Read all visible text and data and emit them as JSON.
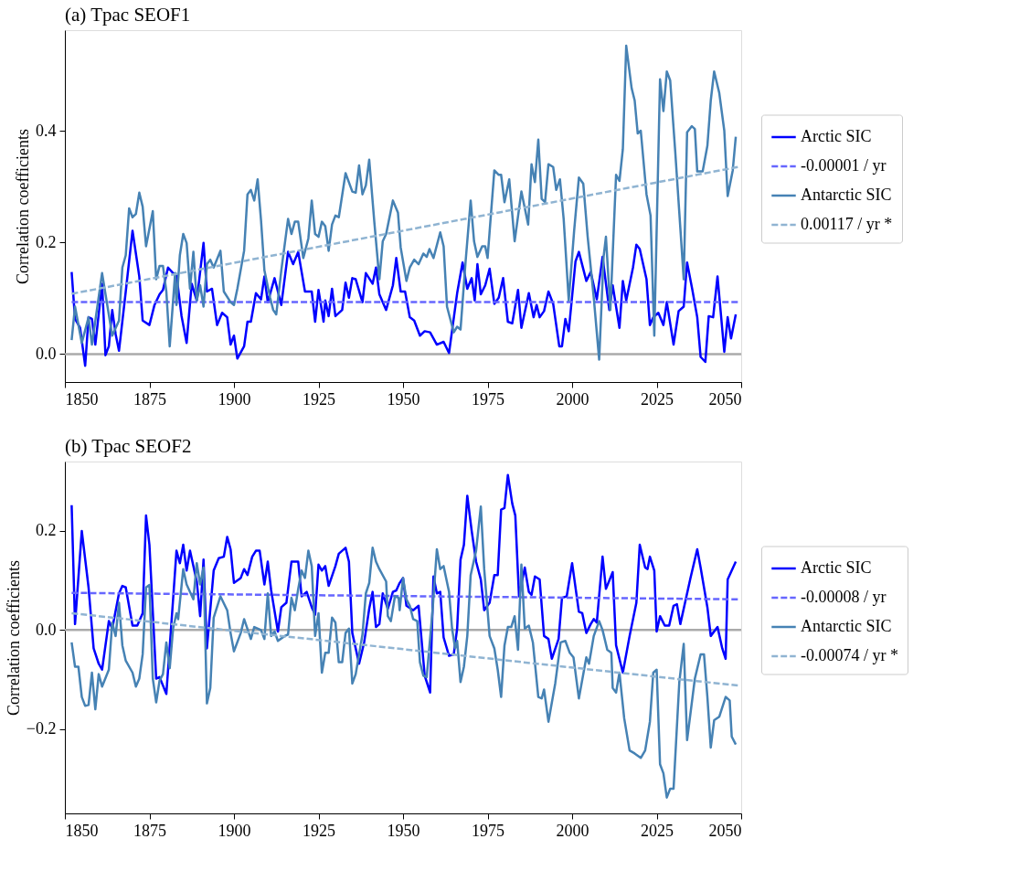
{
  "chart_data": [
    {
      "type": "line",
      "title": "(a) Tpac SEOF1",
      "ylabel": "Correlation coefficients",
      "legend": "right",
      "xlim": [
        1850,
        2050
      ],
      "xticks": [
        1850,
        1875,
        1900,
        1925,
        1950,
        1975,
        2000,
        2025,
        2050
      ],
      "ylim": [
        -0.05,
        0.58
      ],
      "yticks": [
        {
          "value": 0,
          "label": "0.0"
        },
        {
          "value": 0.2,
          "label": "0.2"
        },
        {
          "value": 0.4,
          "label": "0.4"
        }
      ],
      "ref_lines": [
        {
          "axis": "y",
          "value": 0,
          "color": "#aaaaaa"
        }
      ],
      "series": [
        {
          "name": "Arctic SIC",
          "type": "line",
          "color": "#0000ff",
          "line_style": "solid",
          "x": [
            1852,
            1853,
            1854.5,
            1856,
            1857,
            1858,
            1859,
            1861,
            1862,
            1863,
            1864,
            1865,
            1866,
            1868,
            1870,
            1872,
            1873,
            1875,
            1876.5,
            1878,
            1879,
            1880.5,
            1882,
            1883,
            1884.5,
            1886,
            1887.5,
            1889,
            1891,
            1892,
            1893.5,
            1895,
            1896.5,
            1898,
            1899,
            1900,
            1901,
            1903,
            1904,
            1905,
            1906.5,
            1908,
            1909,
            1910,
            1912,
            1914,
            1916,
            1917.5,
            1919,
            1921,
            1923,
            1924,
            1925,
            1926.5,
            1927,
            1928,
            1929,
            1930,
            1932,
            1933,
            1934,
            1935,
            1936,
            1938,
            1939,
            1941,
            1942,
            1943,
            1945,
            1947,
            1948,
            1949.3,
            1950.6,
            1952,
            1953.3,
            1955,
            1956.4,
            1958,
            1960,
            1962,
            1963.6,
            1966,
            1967.6,
            1969,
            1970.3,
            1971.2,
            1972,
            1973,
            1974.3,
            1975.6,
            1977,
            1978.3,
            1979.6,
            1981,
            1982.3,
            1984,
            1985,
            1987.2,
            1988.6,
            1989.5,
            1990.4,
            1991.7,
            1993,
            1994.4,
            1996.2,
            1997,
            1998,
            1999,
            2001,
            2002,
            2004.2,
            2005.5,
            2007.3,
            2009,
            2011,
            2012,
            2014,
            2015,
            2016,
            2018,
            2019,
            2020,
            2022,
            2023,
            2024,
            2025.5,
            2027,
            2028,
            2030,
            2031.5,
            2033,
            2034,
            2035.5,
            2037,
            2038,
            2039.4,
            2040.4,
            2041.7,
            2043,
            2045,
            2046,
            2047,
            2048.4
          ],
          "values": [
            0.147,
            0.063,
            0.047,
            -0.021,
            0.066,
            0.063,
            0.017,
            0.126,
            -0.002,
            0.014,
            0.079,
            0.036,
            0.006,
            0.112,
            0.221,
            0.139,
            0.06,
            0.052,
            0.088,
            0.107,
            0.115,
            0.155,
            0.145,
            0.142,
            0.068,
            0.02,
            0.126,
            0.096,
            0.199,
            0.112,
            0.117,
            0.052,
            0.074,
            0.066,
            0.017,
            0.033,
            -0.008,
            0.014,
            0.058,
            0.058,
            0.109,
            0.098,
            0.139,
            0.093,
            0.136,
            0.088,
            0.183,
            0.161,
            0.183,
            0.112,
            0.112,
            0.058,
            0.115,
            0.058,
            0.096,
            0.068,
            0.117,
            0.068,
            0.079,
            0.128,
            0.101,
            0.136,
            0.134,
            0.093,
            0.145,
            0.126,
            0.155,
            0.107,
            0.079,
            0.123,
            0.172,
            0.112,
            0.112,
            0.066,
            0.06,
            0.033,
            0.041,
            0.039,
            0.017,
            0.022,
            0.002,
            0.109,
            0.164,
            0.117,
            0.136,
            0.096,
            0.161,
            0.107,
            0.123,
            0.153,
            0.09,
            0.101,
            0.136,
            0.058,
            0.055,
            0.115,
            0.047,
            0.109,
            0.066,
            0.088,
            0.066,
            0.077,
            0.112,
            0.09,
            0.014,
            0.014,
            0.063,
            0.041,
            0.166,
            0.183,
            0.131,
            0.147,
            0.098,
            0.174,
            0.079,
            0.123,
            0.047,
            0.131,
            0.096,
            0.155,
            0.196,
            0.188,
            0.134,
            0.052,
            0.066,
            0.074,
            0.052,
            0.093,
            0.017,
            0.077,
            0.085,
            0.164,
            0.117,
            0.066,
            -0.005,
            -0.014,
            0.068,
            0.066,
            0.139,
            0.004,
            0.066,
            0.028,
            0.071
          ]
        },
        {
          "name": "-0.00001 / yr",
          "type": "line",
          "color": "#6666ff",
          "line_style": "dashed",
          "x": [
            1852,
            2049
          ],
          "values": [
            0.093,
            0.093
          ]
        },
        {
          "name": "Antarctic SIC",
          "type": "line",
          "color": "#4682b4",
          "line_style": "solid",
          "x": [
            1852,
            1853,
            1855,
            1857,
            1858,
            1861,
            1864,
            1866,
            1867,
            1868,
            1869,
            1870,
            1871,
            1872,
            1873,
            1874,
            1876,
            1877,
            1878,
            1879,
            1880,
            1881,
            1882.6,
            1883,
            1884,
            1885,
            1886,
            1887,
            1888,
            1889,
            1890,
            1891,
            1892,
            1893,
            1894,
            1896,
            1897,
            1899,
            1900,
            1901,
            1903,
            1904,
            1905,
            1906,
            1907,
            1908,
            1909,
            1910.7,
            1911.6,
            1912.5,
            1914,
            1916,
            1917,
            1918,
            1919,
            1920.5,
            1922,
            1923,
            1924,
            1925,
            1926,
            1927,
            1928,
            1929,
            1930,
            1931,
            1933,
            1935,
            1936,
            1937,
            1938,
            1939,
            1940,
            1941.5,
            1943,
            1944,
            1945,
            1947,
            1948.5,
            1949.3,
            1951,
            1952,
            1953.3,
            1954.6,
            1956,
            1957,
            1957.8,
            1959,
            1961,
            1962,
            1963,
            1965,
            1966,
            1967,
            1968.5,
            1970,
            1971,
            1972,
            1973.4,
            1974.3,
            1975,
            1977,
            1978.3,
            1979,
            1980,
            1981.4,
            1983,
            1985,
            1987,
            1988,
            1989,
            1990,
            1991,
            1992,
            1993,
            1994.4,
            1995.3,
            1996.4,
            1997.5,
            1999,
            2000.6,
            2002,
            2003.3,
            2004.6,
            2006.4,
            2008,
            2009.3,
            2010,
            2011.3,
            2013,
            2014,
            2015,
            2016,
            2017.6,
            2018.5,
            2019.4,
            2020.3,
            2022,
            2023.2,
            2024.3,
            2026,
            2027,
            2028,
            2029,
            2030.5,
            2032,
            2033,
            2034,
            2035.4,
            2036.3,
            2037,
            2038.6,
            2040,
            2041,
            2042,
            2043.5,
            2045,
            2046,
            2047.5,
            2048.4
          ],
          "values": [
            0.025,
            0.085,
            0.02,
            0.066,
            0.017,
            0.145,
            0.033,
            0.06,
            0.155,
            0.177,
            0.261,
            0.245,
            0.251,
            0.289,
            0.264,
            0.193,
            0.256,
            0.134,
            0.158,
            0.158,
            0.112,
            0.014,
            0.145,
            0.088,
            0.177,
            0.215,
            0.199,
            0.117,
            0.183,
            0.096,
            0.123,
            0.085,
            0.161,
            0.169,
            0.155,
            0.185,
            0.112,
            0.093,
            0.088,
            0.117,
            0.185,
            0.286,
            0.294,
            0.275,
            0.313,
            0.24,
            0.15,
            0.101,
            0.079,
            0.071,
            0.15,
            0.242,
            0.215,
            0.237,
            0.237,
            0.172,
            0.207,
            0.275,
            0.215,
            0.21,
            0.237,
            0.229,
            0.185,
            0.232,
            0.248,
            0.245,
            0.324,
            0.291,
            0.289,
            0.338,
            0.286,
            0.302,
            0.348,
            0.237,
            0.134,
            0.202,
            0.215,
            0.275,
            0.253,
            0.191,
            0.131,
            0.155,
            0.169,
            0.161,
            0.18,
            0.174,
            0.188,
            0.172,
            0.218,
            0.193,
            0.085,
            0.039,
            0.049,
            0.044,
            0.166,
            0.275,
            0.202,
            0.174,
            0.193,
            0.193,
            0.172,
            0.329,
            0.321,
            0.321,
            0.272,
            0.313,
            0.202,
            0.291,
            0.232,
            0.34,
            0.308,
            0.384,
            0.278,
            0.272,
            0.34,
            0.335,
            0.294,
            0.313,
            0.242,
            0.096,
            0.221,
            0.316,
            0.305,
            0.21,
            0.101,
            -0.01,
            0.174,
            0.21,
            0.079,
            0.321,
            0.31,
            0.367,
            0.552,
            0.476,
            0.454,
            0.395,
            0.4,
            0.286,
            0.248,
            0.033,
            0.492,
            0.435,
            0.506,
            0.49,
            0.362,
            0.226,
            0.134,
            0.397,
            0.408,
            0.403,
            0.327,
            0.327,
            0.373,
            0.454,
            0.506,
            0.468,
            0.4,
            0.283,
            0.329,
            0.389
          ]
        },
        {
          "name": "0.00117 / yr *",
          "type": "line",
          "color": "#90b4d2",
          "line_style": "dashed",
          "x": [
            1852,
            2049
          ],
          "values": [
            0.108,
            0.335
          ]
        }
      ]
    },
    {
      "type": "line",
      "title": "(b) Tpac SEOF2",
      "ylabel": "Correlation coefficients",
      "legend": "right",
      "xlim": [
        1850,
        2050
      ],
      "xticks": [
        1850,
        1875,
        1900,
        1925,
        1950,
        1975,
        2000,
        2025,
        2050
      ],
      "ylim": [
        -0.37,
        0.34
      ],
      "yticks": [
        {
          "value": -0.2,
          "label": "−0.2"
        },
        {
          "value": 0,
          "label": "0.0"
        },
        {
          "value": 0.2,
          "label": "0.2"
        }
      ],
      "ref_lines": [
        {
          "axis": "y",
          "value": 0,
          "color": "#aaaaaa"
        }
      ],
      "series": [
        {
          "name": "Arctic SIC",
          "type": "line",
          "color": "#0000ff",
          "line_style": "solid",
          "x": [
            1852,
            1853,
            1855,
            1857,
            1858.5,
            1860,
            1861,
            1863,
            1864,
            1866,
            1867,
            1868,
            1870,
            1871.4,
            1873,
            1874,
            1875,
            1877,
            1878,
            1880,
            1882,
            1883,
            1884,
            1885,
            1886,
            1887,
            1889,
            1890,
            1891,
            1892,
            1894,
            1895.5,
            1897,
            1898,
            1899,
            1900,
            1902,
            1903,
            1904,
            1905.4,
            1906.5,
            1907.6,
            1909,
            1910,
            1911,
            1913,
            1914,
            1915.5,
            1917,
            1919,
            1920,
            1921.5,
            1923,
            1924,
            1925,
            1926,
            1927,
            1928,
            1930,
            1931,
            1933,
            1934,
            1935,
            1937,
            1938.5,
            1940,
            1941,
            1942,
            1943,
            1944,
            1945.5,
            1947,
            1948,
            1949,
            1950,
            1951,
            1953,
            1954.6,
            1956.4,
            1958,
            1959,
            1960,
            1961,
            1962,
            1963.6,
            1965,
            1966,
            1967,
            1968,
            1969,
            1970.3,
            1971.6,
            1973,
            1974,
            1975.6,
            1977,
            1978,
            1979,
            1980,
            1981,
            1982.3,
            1983.2,
            1984.3,
            1986,
            1987.2,
            1988,
            1989,
            1990.4,
            1991.7,
            1993,
            1994,
            1996,
            1997,
            1998.4,
            2000,
            2002,
            2003,
            2004.2,
            2005.5,
            2006.4,
            2007.3,
            2009,
            2010,
            2012,
            2013,
            2015,
            2017,
            2019,
            2020,
            2021.6,
            2022.3,
            2023,
            2024.3,
            2025,
            2026,
            2027.4,
            2028.7,
            2030,
            2031,
            2032,
            2035,
            2037,
            2038,
            2040,
            2041,
            2043,
            2044.4,
            2045.4,
            2046,
            2048.4
          ],
          "values": [
            0.252,
            0.012,
            0.2,
            0.086,
            -0.037,
            -0.068,
            -0.08,
            0.018,
            0.003,
            0.074,
            0.089,
            0.086,
            0.009,
            0.009,
            0.034,
            0.231,
            0.172,
            -0.098,
            -0.095,
            -0.129,
            0.062,
            0.16,
            0.135,
            0.172,
            0.12,
            0.16,
            0.098,
            0.028,
            0.142,
            -0.037,
            0.12,
            0.145,
            0.148,
            0.188,
            0.163,
            0.095,
            0.105,
            0.123,
            0.111,
            0.148,
            0.16,
            0.16,
            0.092,
            0.138,
            0.08,
            -0.003,
            0.046,
            0.055,
            0.138,
            0.138,
            0.068,
            0.077,
            0.046,
            0.031,
            0.132,
            0.12,
            0.129,
            0.089,
            0.129,
            0.154,
            0.166,
            0.138,
            -0.006,
            -0.068,
            -0.025,
            0.043,
            0.077,
            0.006,
            0.012,
            0.074,
            0.043,
            0.077,
            0.08,
            0.095,
            0.105,
            0.049,
            0.04,
            0.049,
            -0.092,
            -0.126,
            0.108,
            0.074,
            0.077,
            -0.015,
            -0.052,
            -0.049,
            0.003,
            0.142,
            0.172,
            0.271,
            0.2,
            0.138,
            0.102,
            0.04,
            0.055,
            0.111,
            0.111,
            0.243,
            0.246,
            0.313,
            0.255,
            0.231,
            0.068,
            0.126,
            0.077,
            0.071,
            0.108,
            0.102,
            -0.012,
            -0.018,
            -0.058,
            -0.018,
            0.065,
            0.068,
            0.135,
            0.037,
            0.034,
            -0.006,
            0.012,
            0.022,
            0.015,
            0.148,
            0.083,
            0.117,
            -0.031,
            -0.086,
            -0.012,
            0.055,
            0.172,
            0.126,
            0.123,
            0.148,
            0.12,
            -0.003,
            0.028,
            0.009,
            0.009,
            0.049,
            0.052,
            0.012,
            0.105,
            0.163,
            0.126,
            0.046,
            -0.012,
            0.006,
            -0.037,
            -0.058,
            0.102,
            0.138
          ]
        },
        {
          "name": "-0.00008 / yr",
          "type": "line",
          "color": "#6666ff",
          "line_style": "dashed",
          "x": [
            1852,
            2049
          ],
          "values": [
            0.075,
            0.062
          ]
        },
        {
          "name": "Antarctic SIC",
          "type": "line",
          "color": "#4682b4",
          "line_style": "solid",
          "x": [
            1852,
            1853,
            1854,
            1855,
            1856,
            1857,
            1858,
            1859,
            1860,
            1861,
            1863,
            1864,
            1865,
            1866,
            1867,
            1868,
            1870,
            1871,
            1872,
            1873,
            1874,
            1875,
            1876,
            1877,
            1878,
            1879,
            1880,
            1881,
            1882,
            1883,
            1883.5,
            1885,
            1886,
            1888,
            1889,
            1890,
            1891,
            1892,
            1893,
            1894,
            1896,
            1898,
            1899,
            1900,
            1902,
            1903,
            1905,
            1906,
            1908,
            1909,
            1910,
            1911,
            1912,
            1913,
            1915,
            1916,
            1917,
            1918,
            1919,
            1920,
            1921,
            1922,
            1923,
            1924,
            1925,
            1926,
            1927,
            1928,
            1929,
            1930,
            1931,
            1932,
            1933,
            1934,
            1935,
            1936,
            1938,
            1939,
            1940,
            1941,
            1942,
            1943,
            1945,
            1945.5,
            1946.4,
            1947.6,
            1948.7,
            1949,
            1950,
            1951,
            1952,
            1953,
            1954.2,
            1955,
            1956,
            1957,
            1958.7,
            1960,
            1961,
            1962,
            1963.6,
            1964.5,
            1965.4,
            1966,
            1967,
            1968,
            1969,
            1970,
            1971.6,
            1973,
            1974,
            1975.6,
            1977,
            1978,
            1979,
            1980,
            1981,
            1982,
            1983,
            1984,
            1985,
            1986,
            1987.2,
            1988.4,
            1990,
            1991,
            1991.7,
            1993,
            1995,
            1996.6,
            1998,
            1999.3,
            2000.4,
            2002,
            2004.2,
            2005,
            2006.4,
            2008,
            2009,
            2010.4,
            2011.6,
            2012,
            2013,
            2014,
            2015.4,
            2017,
            2018.5,
            2020.3,
            2021.6,
            2023,
            2024,
            2025,
            2026,
            2027,
            2028,
            2029,
            2030,
            2031.7,
            2033,
            2034,
            2036.3,
            2038,
            2039,
            2040,
            2041,
            2042,
            2043.5,
            2045.4,
            2046.6,
            2047.2,
            2048.4
          ],
          "values": [
            -0.025,
            -0.074,
            -0.074,
            -0.135,
            -0.153,
            -0.151,
            -0.086,
            -0.16,
            -0.089,
            -0.114,
            -0.08,
            0.015,
            -0.012,
            0.055,
            -0.031,
            -0.062,
            -0.086,
            -0.114,
            -0.098,
            -0.049,
            0.086,
            0.091,
            -0.098,
            -0.146,
            -0.102,
            -0.089,
            -0.025,
            -0.077,
            0.003,
            0.034,
            0.022,
            0.123,
            0.092,
            0.062,
            0.135,
            0.092,
            0.126,
            -0.148,
            -0.117,
            0.025,
            0.068,
            0.04,
            -0.006,
            -0.043,
            -0.006,
            0.022,
            -0.018,
            0.006,
            0.0,
            -0.018,
            0.074,
            -0.012,
            -0.003,
            -0.022,
            -0.012,
            -0.009,
            0.065,
            0.04,
            0.083,
            0.12,
            0.105,
            0.16,
            0.129,
            -0.012,
            0.034,
            -0.086,
            -0.046,
            -0.046,
            0.025,
            0.015,
            -0.065,
            -0.065,
            -0.006,
            0.003,
            -0.108,
            -0.089,
            -0.009,
            0.074,
            0.095,
            0.166,
            0.138,
            0.123,
            0.098,
            0.028,
            0.018,
            0.068,
            0.065,
            0.04,
            0.105,
            0.062,
            0.049,
            0.022,
            0.018,
            -0.065,
            -0.092,
            -0.095,
            0.037,
            0.163,
            0.123,
            0.129,
            0.077,
            0.003,
            -0.037,
            -0.022,
            -0.105,
            -0.074,
            -0.012,
            0.111,
            0.16,
            0.249,
            0.123,
            -0.012,
            -0.037,
            -0.08,
            -0.135,
            -0.031,
            0.006,
            0.006,
            0.028,
            -0.04,
            0.132,
            0.003,
            0.009,
            -0.025,
            -0.135,
            -0.138,
            -0.12,
            -0.185,
            -0.108,
            -0.025,
            -0.022,
            -0.046,
            -0.055,
            -0.138,
            -0.055,
            -0.068,
            -0.012,
            0.018,
            0.0,
            -0.04,
            -0.046,
            -0.117,
            -0.126,
            -0.086,
            -0.178,
            -0.243,
            -0.249,
            -0.258,
            -0.243,
            -0.185,
            -0.086,
            -0.08,
            -0.271,
            -0.289,
            -0.338,
            -0.32,
            -0.32,
            -0.105,
            -0.028,
            -0.222,
            -0.098,
            -0.049,
            -0.049,
            -0.135,
            -0.237,
            -0.182,
            -0.175,
            -0.135,
            -0.142,
            -0.215,
            -0.231
          ]
        },
        {
          "name": "-0.00074 / yr *",
          "type": "line",
          "color": "#90b4d2",
          "line_style": "dashed",
          "x": [
            1852,
            2049
          ],
          "values": [
            0.034,
            -0.112
          ]
        }
      ]
    }
  ]
}
